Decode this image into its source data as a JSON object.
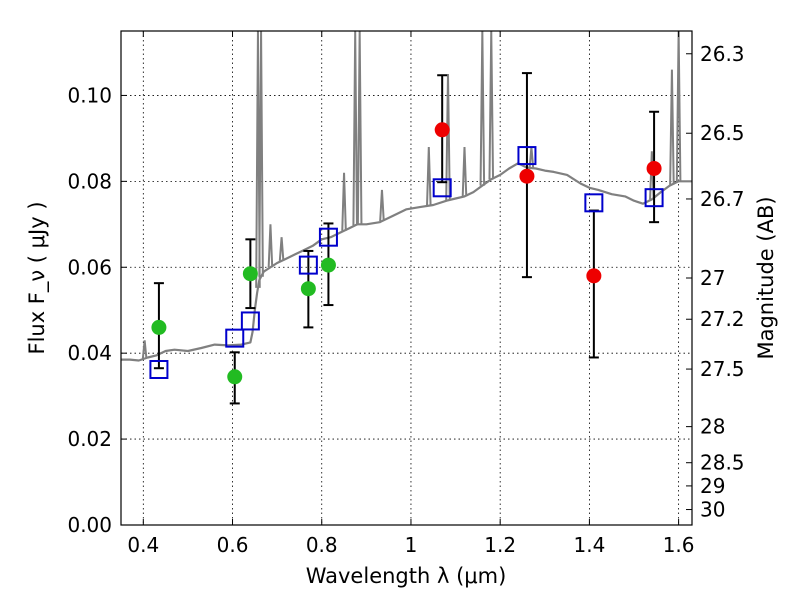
{
  "chart_data": {
    "type": "scatter",
    "xlabel": "Wavelength λ (μm)",
    "ylabel": "Flux F_ν ( μJy )",
    "ylabel_right": "Magnitude (AB)",
    "xlim": [
      0.35,
      1.63
    ],
    "ylim": [
      0.0,
      0.115
    ],
    "grid": true,
    "x_ticks": [
      0.4,
      0.6,
      0.8,
      1.0,
      1.2,
      1.4,
      1.6
    ],
    "x_tick_labels": [
      "0.4",
      "0.6",
      "0.8",
      "1",
      "1.2",
      "1.4",
      "1.6"
    ],
    "y_ticks": [
      0.0,
      0.02,
      0.04,
      0.06,
      0.08,
      0.1
    ],
    "y_tick_labels": [
      "0.00",
      "0.02",
      "0.04",
      "0.06",
      "0.08",
      "0.10"
    ],
    "right_ticks": [
      {
        "label": "26.3",
        "flux": 0.1097
      },
      {
        "label": "26.5",
        "flux": 0.0912
      },
      {
        "label": "26.7",
        "flux": 0.0759
      },
      {
        "label": "27",
        "flux": 0.0575
      },
      {
        "label": "27.2",
        "flux": 0.0479
      },
      {
        "label": "27.5",
        "flux": 0.0363
      },
      {
        "label": "28",
        "flux": 0.0229
      },
      {
        "label": "28.5",
        "flux": 0.0145
      },
      {
        "label": "29",
        "flux": 0.0091
      },
      {
        "label": "30",
        "flux": 0.0036
      }
    ],
    "colors": {
      "model": "#808080",
      "green": "#22bb22",
      "red": "#ee0000",
      "model_phot": "#0000cc",
      "errorbar": "#000000"
    },
    "series": [
      {
        "kind": "model_spectrum",
        "x": [
          0.35,
          0.37,
          0.39,
          0.41,
          0.43,
          0.45,
          0.47,
          0.5,
          0.53,
          0.56,
          0.59,
          0.62,
          0.64,
          0.645,
          0.65,
          0.655,
          0.66,
          0.665,
          0.67,
          0.7,
          0.72,
          0.74,
          0.76,
          0.78,
          0.8,
          0.82,
          0.84,
          0.86,
          0.88,
          0.9,
          0.93,
          0.96,
          0.99,
          1.02,
          1.05,
          1.08,
          1.1,
          1.12,
          1.14,
          1.16,
          1.18,
          1.2,
          1.22,
          1.24,
          1.26,
          1.28,
          1.3,
          1.32,
          1.35,
          1.38,
          1.4,
          1.42,
          1.45,
          1.48,
          1.5,
          1.52,
          1.54,
          1.56,
          1.58,
          1.6,
          1.63
        ],
        "y": [
          0.0385,
          0.0385,
          0.0383,
          0.039,
          0.0395,
          0.0405,
          0.0408,
          0.0405,
          0.0412,
          0.042,
          0.0418,
          0.042,
          0.0425,
          0.045,
          0.05,
          0.054,
          0.057,
          0.058,
          0.059,
          0.061,
          0.062,
          0.063,
          0.064,
          0.065,
          0.0665,
          0.067,
          0.068,
          0.069,
          0.07,
          0.07,
          0.0705,
          0.072,
          0.0735,
          0.074,
          0.0745,
          0.0755,
          0.076,
          0.0765,
          0.0775,
          0.079,
          0.0805,
          0.0815,
          0.083,
          0.0842,
          0.0832,
          0.083,
          0.0825,
          0.0822,
          0.0815,
          0.0795,
          0.0785,
          0.078,
          0.077,
          0.0765,
          0.0755,
          0.0748,
          0.0758,
          0.0775,
          0.079,
          0.08,
          0.08
        ]
      },
      {
        "kind": "emission_lines",
        "lines": [
          {
            "x": 0.403,
            "y": 0.043
          },
          {
            "x": 0.657,
            "y": 0.115
          },
          {
            "x": 0.664,
            "y": 0.115
          },
          {
            "x": 0.685,
            "y": 0.07
          },
          {
            "x": 0.71,
            "y": 0.067
          },
          {
            "x": 0.85,
            "y": 0.082
          },
          {
            "x": 0.875,
            "y": 0.115
          },
          {
            "x": 0.885,
            "y": 0.115
          },
          {
            "x": 0.935,
            "y": 0.078
          },
          {
            "x": 1.04,
            "y": 0.088
          },
          {
            "x": 1.083,
            "y": 0.105
          },
          {
            "x": 1.12,
            "y": 0.088
          },
          {
            "x": 1.16,
            "y": 0.115
          },
          {
            "x": 1.18,
            "y": 0.115
          },
          {
            "x": 1.27,
            "y": 0.088
          },
          {
            "x": 1.54,
            "y": 0.087
          },
          {
            "x": 1.585,
            "y": 0.106
          },
          {
            "x": 1.6,
            "y": 0.115
          }
        ]
      },
      {
        "kind": "observed",
        "color": "green",
        "points": [
          {
            "x": 0.435,
            "y": 0.046,
            "lo": 0.0365,
            "hi": 0.0563
          },
          {
            "x": 0.605,
            "y": 0.0345,
            "lo": 0.0283,
            "hi": 0.0402
          },
          {
            "x": 0.64,
            "y": 0.0585,
            "lo": 0.0505,
            "hi": 0.0665
          },
          {
            "x": 0.77,
            "y": 0.055,
            "lo": 0.046,
            "hi": 0.0638
          },
          {
            "x": 0.815,
            "y": 0.0605,
            "lo": 0.0512,
            "hi": 0.0702
          }
        ]
      },
      {
        "kind": "observed",
        "color": "red",
        "points": [
          {
            "x": 1.07,
            "y": 0.092,
            "lo": 0.0798,
            "hi": 0.1047
          },
          {
            "x": 1.26,
            "y": 0.0812,
            "lo": 0.0577,
            "hi": 0.1052
          },
          {
            "x": 1.41,
            "y": 0.058,
            "lo": 0.039,
            "hi": 0.0732
          },
          {
            "x": 1.545,
            "y": 0.083,
            "lo": 0.0705,
            "hi": 0.0962
          }
        ]
      },
      {
        "kind": "model_photometry",
        "points": [
          {
            "x": 0.435,
            "y": 0.0362
          },
          {
            "x": 0.605,
            "y": 0.0435
          },
          {
            "x": 0.64,
            "y": 0.0475
          },
          {
            "x": 0.77,
            "y": 0.0605
          },
          {
            "x": 0.815,
            "y": 0.067
          },
          {
            "x": 1.07,
            "y": 0.0785
          },
          {
            "x": 1.26,
            "y": 0.086
          },
          {
            "x": 1.41,
            "y": 0.075
          },
          {
            "x": 1.545,
            "y": 0.0762
          }
        ]
      }
    ]
  }
}
